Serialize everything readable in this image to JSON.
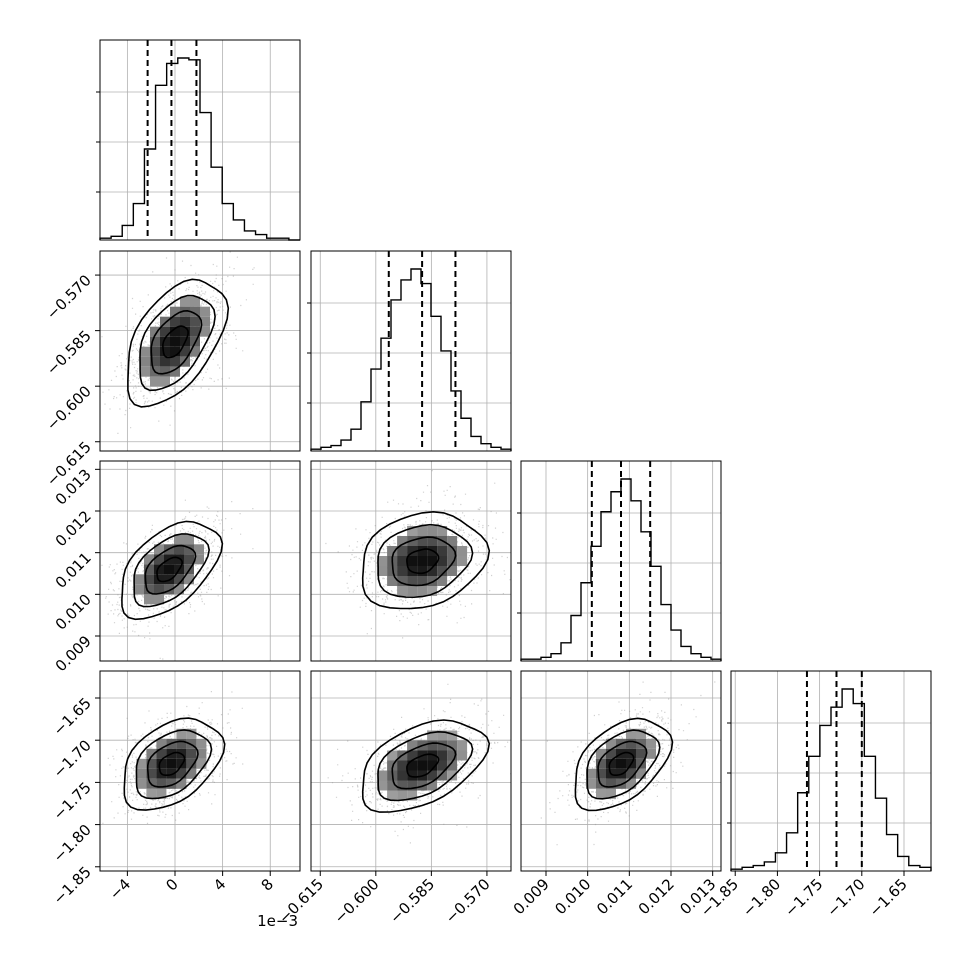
{
  "chart_data": {
    "type": "corner",
    "title": "",
    "dimensions": [
      {
        "name": "",
        "ticks": [
          -4,
          0,
          4,
          8
        ],
        "tick_labels": [
          "−4",
          "0",
          "4",
          "8"
        ],
        "range": [
          -6.3,
          10.5
        ],
        "offset_label": "1e−3"
      },
      {
        "name": "",
        "ticks": [
          -0.615,
          -0.6,
          -0.585,
          -0.57
        ],
        "tick_labels": [
          "−0.615",
          "−0.600",
          "−0.585",
          "−0.570"
        ],
        "range": [
          -0.6175,
          -0.5635
        ]
      },
      {
        "name": "",
        "ticks": [
          0.009,
          0.01,
          0.011,
          0.012,
          0.013
        ],
        "tick_labels": [
          "0.009",
          "0.010",
          "0.011",
          "0.012",
          "0.013"
        ],
        "range": [
          0.0084,
          0.0132
        ]
      },
      {
        "name": "",
        "ticks": [
          -1.85,
          -1.8,
          -1.75,
          -1.7,
          -1.65
        ],
        "tick_labels": [
          "−1.85",
          "−1.80",
          "−1.75",
          "−1.70",
          "−1.65"
        ],
        "range": [
          -1.855,
          -1.618
        ]
      }
    ],
    "marginals": [
      {
        "dim": 0,
        "quantiles": [
          -2.3,
          -0.3,
          1.8
        ],
        "hist": [
          0.01,
          0.02,
          0.08,
          0.2,
          0.5,
          0.85,
          0.97,
          1.0,
          0.99,
          0.7,
          0.4,
          0.2,
          0.11,
          0.05,
          0.03,
          0.01,
          0.01,
          0.0
        ]
      },
      {
        "dim": 1,
        "quantiles": [
          -0.5965,
          -0.5875,
          -0.5785
        ],
        "hist": [
          0.01,
          0.02,
          0.03,
          0.06,
          0.12,
          0.27,
          0.45,
          0.62,
          0.83,
          0.94,
          1.0,
          0.92,
          0.74,
          0.55,
          0.33,
          0.18,
          0.08,
          0.04,
          0.02,
          0.01
        ]
      },
      {
        "dim": 2,
        "quantiles": [
          0.0101,
          0.0108,
          0.0115
        ],
        "hist": [
          0.01,
          0.01,
          0.02,
          0.04,
          0.1,
          0.25,
          0.43,
          0.63,
          0.82,
          0.93,
          1.0,
          0.88,
          0.71,
          0.52,
          0.31,
          0.17,
          0.08,
          0.04,
          0.02,
          0.01
        ]
      },
      {
        "dim": 3,
        "quantiles": [
          -1.765,
          -1.73,
          -1.7
        ],
        "hist": [
          0.01,
          0.02,
          0.03,
          0.05,
          0.1,
          0.21,
          0.43,
          0.63,
          0.8,
          0.9,
          1.0,
          0.92,
          0.63,
          0.4,
          0.2,
          0.08,
          0.03,
          0.02
        ]
      }
    ],
    "pairs": [
      {
        "row": 1,
        "col": 0,
        "center": [
          0.0,
          -0.588
        ],
        "spread": [
          2.1,
          0.0085
        ],
        "corr": 0.5
      },
      {
        "row": 2,
        "col": 0,
        "center": [
          -0.5,
          0.0106
        ],
        "spread": [
          2.1,
          0.00058
        ],
        "corr": 0.5
      },
      {
        "row": 2,
        "col": 1,
        "center": [
          -0.5875,
          0.0108
        ],
        "spread": [
          0.0085,
          0.00058
        ],
        "corr": 0.2
      },
      {
        "row": 3,
        "col": 0,
        "center": [
          -0.3,
          -1.728
        ],
        "spread": [
          2.1,
          0.027
        ],
        "corr": 0.4
      },
      {
        "row": 3,
        "col": 1,
        "center": [
          -0.5875,
          -1.73
        ],
        "spread": [
          0.0085,
          0.027
        ],
        "corr": 0.45
      },
      {
        "row": 3,
        "col": 2,
        "center": [
          0.0108,
          -1.728
        ],
        "spread": [
          0.00058,
          0.027
        ],
        "corr": 0.45
      }
    ],
    "contour_levels": [
      0.5,
      1.0,
      1.5,
      2.0
    ],
    "grid": true
  }
}
